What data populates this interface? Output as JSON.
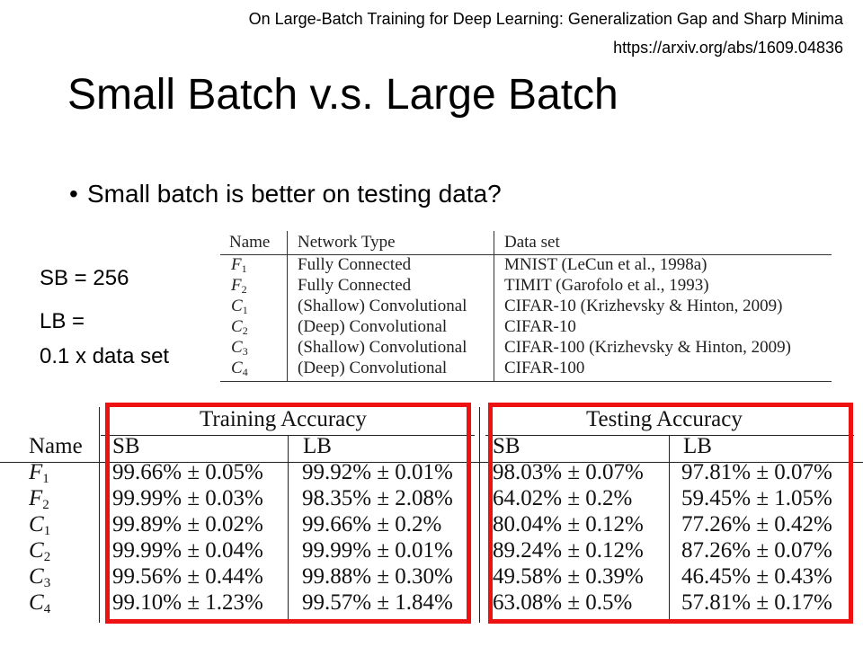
{
  "reference": {
    "title": "On Large-Batch Training for Deep Learning: Generalization Gap and Sharp Minima",
    "url": "https://arxiv.org/abs/1609.04836"
  },
  "slide": {
    "title": "Small Batch v.s. Large Batch",
    "bullet": "Small batch is better on testing data?",
    "sb_note": "SB = 256",
    "lb_note_line1": "LB =",
    "lb_note_line2": "0.1 x data set"
  },
  "network_table": {
    "headers": [
      "Name",
      "Network Type",
      "Data set"
    ],
    "rows": [
      {
        "name": "F",
        "sub": "1",
        "type": "Fully Connected",
        "dataset": "MNIST (LeCun et al., 1998a)"
      },
      {
        "name": "F",
        "sub": "2",
        "type": "Fully Connected",
        "dataset": "TIMIT (Garofolo et al., 1993)"
      },
      {
        "name": "C",
        "sub": "1",
        "type": "(Shallow) Convolutional",
        "dataset": "CIFAR-10 (Krizhevsky & Hinton, 2009)"
      },
      {
        "name": "C",
        "sub": "2",
        "type": "(Deep) Convolutional",
        "dataset": "CIFAR-10"
      },
      {
        "name": "C",
        "sub": "3",
        "type": "(Shallow) Convolutional",
        "dataset": "CIFAR-100 (Krizhevsky & Hinton, 2009)"
      },
      {
        "name": "C",
        "sub": "4",
        "type": "(Deep) Convolutional",
        "dataset": "CIFAR-100"
      }
    ]
  },
  "accuracy_table": {
    "name_header": "Name",
    "training_header": "Training Accuracy",
    "testing_header": "Testing Accuracy",
    "sb_label": "SB",
    "lb_label": "LB",
    "rows": [
      {
        "name": "F",
        "sub": "1",
        "train_sb": "99.66% ± 0.05%",
        "train_lb": "99.92% ± 0.01%",
        "test_sb": "98.03% ± 0.07%",
        "test_lb": "97.81% ± 0.07%"
      },
      {
        "name": "F",
        "sub": "2",
        "train_sb": "99.99% ± 0.03%",
        "train_lb": "98.35% ± 2.08%",
        "test_sb": "64.02% ± 0.2%",
        "test_lb": "59.45% ± 1.05%"
      },
      {
        "name": "C",
        "sub": "1",
        "train_sb": "99.89% ± 0.02%",
        "train_lb": "99.66% ± 0.2%",
        "test_sb": "80.04% ± 0.12%",
        "test_lb": "77.26% ± 0.42%"
      },
      {
        "name": "C",
        "sub": "2",
        "train_sb": "99.99% ± 0.04%",
        "train_lb": "99.99% ± 0.01%",
        "test_sb": "89.24% ± 0.12%",
        "test_lb": "87.26% ± 0.07%"
      },
      {
        "name": "C",
        "sub": "3",
        "train_sb": "99.56% ± 0.44%",
        "train_lb": "99.88% ± 0.30%",
        "test_sb": "49.58% ± 0.39%",
        "test_lb": "46.45% ± 0.43%"
      },
      {
        "name": "C",
        "sub": "4",
        "train_sb": "99.10% ± 1.23%",
        "train_lb": "99.57% ± 1.84%",
        "test_sb": "63.08% ± 0.5%",
        "test_lb": "57.81% ± 0.17%"
      }
    ]
  },
  "colors": {
    "highlight_box": "#ee1111"
  }
}
